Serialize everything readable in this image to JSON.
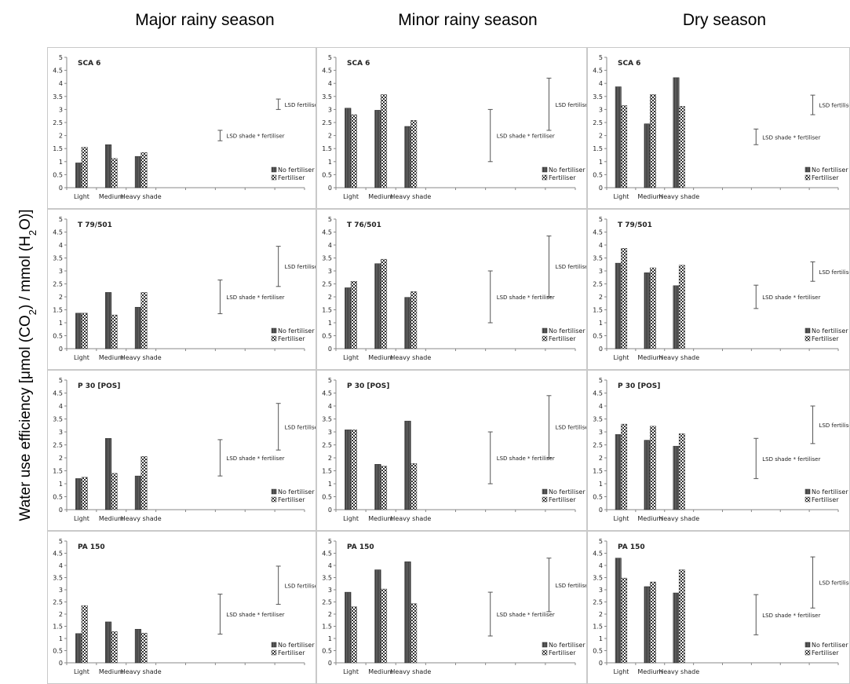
{
  "headers": [
    "Major rainy season",
    "Minor rainy season",
    "Dry season"
  ],
  "y_axis_label": {
    "pre": "Water use efficiency [μmol (CO",
    "sub1": "2",
    "mid": ") / mmol (H",
    "sub2": "2",
    "post": "O)]"
  },
  "colors": {
    "no_fertiliser": "#3a3a3a",
    "fertiliser_pattern": "checkered",
    "border": "#c9c9c9"
  },
  "chart_data": [
    {
      "type": "bar",
      "title": "SCA 6",
      "column": "Major rainy season",
      "categories": [
        "Light",
        "Medium",
        "Heavy shade"
      ],
      "ylim": [
        0,
        5
      ],
      "yticks": [
        "0",
        "0.5",
        "1",
        "1.5",
        "2",
        "2.5",
        "3",
        "3.5",
        "4",
        "4.5",
        "5"
      ],
      "series": [
        {
          "name": "No fertiliser",
          "values": [
            0.95,
            1.65,
            1.2
          ]
        },
        {
          "name": "Fertiliser",
          "values": [
            1.55,
            1.12,
            1.35
          ]
        }
      ],
      "lsd_fertiliser": {
        "label": "LSD fertiliser",
        "range": [
          3.0,
          3.4
        ]
      },
      "lsd_shade_fertiliser": {
        "label": "LSD shade * fertiliser",
        "range": [
          1.8,
          2.2
        ]
      }
    },
    {
      "type": "bar",
      "title": "SCA 6",
      "column": "Minor rainy season",
      "categories": [
        "Light",
        "Medium",
        "Heavy shade"
      ],
      "ylim": [
        0,
        5
      ],
      "yticks": [
        "0",
        "0.5",
        "1",
        "1.5",
        "2",
        "2.5",
        "3",
        "3.5",
        "4",
        "4.5",
        "5"
      ],
      "series": [
        {
          "name": "No fertiliser",
          "values": [
            3.05,
            2.97,
            2.35
          ]
        },
        {
          "name": "Fertiliser",
          "values": [
            2.8,
            3.57,
            2.58
          ]
        }
      ],
      "lsd_fertiliser": {
        "label": "LSD fertiliser",
        "range": [
          2.2,
          4.2
        ]
      },
      "lsd_shade_fertiliser": {
        "label": "LSD shade * fertiliser",
        "range": [
          1.0,
          3.0
        ]
      }
    },
    {
      "type": "bar",
      "title": "SCA 6",
      "column": "Dry season",
      "categories": [
        "Light",
        "Medium",
        "Heavy shade"
      ],
      "ylim": [
        0,
        5
      ],
      "yticks": [
        "0",
        "0.5",
        "1",
        "1.5",
        "2",
        "2.5",
        "3",
        "3.5",
        "4",
        "4.5",
        "5"
      ],
      "series": [
        {
          "name": "No fertiliser",
          "values": [
            3.87,
            2.45,
            4.22
          ]
        },
        {
          "name": "Fertiliser",
          "values": [
            3.15,
            3.57,
            3.12
          ]
        }
      ],
      "lsd_fertiliser": {
        "label": "LSD fertiliser",
        "range": [
          2.8,
          3.55
        ]
      },
      "lsd_shade_fertiliser": {
        "label": "LSD shade * fertiliser",
        "range": [
          1.65,
          2.25
        ]
      }
    },
    {
      "type": "bar",
      "title": "T 79/501",
      "column": "Major rainy season",
      "categories": [
        "Light",
        "Medium",
        "Heavy shade"
      ],
      "ylim": [
        0,
        5
      ],
      "yticks": [
        "0",
        "0.5",
        "1",
        "1.5",
        "2",
        "2.5",
        "3",
        "3.5",
        "4",
        "4.5",
        "5"
      ],
      "series": [
        {
          "name": "No fertiliser",
          "values": [
            1.37,
            2.17,
            1.6
          ]
        },
        {
          "name": "Fertiliser",
          "values": [
            1.37,
            1.3,
            2.17
          ]
        }
      ],
      "lsd_fertiliser": {
        "label": "LSD fertiliser",
        "range": [
          2.4,
          3.95
        ]
      },
      "lsd_shade_fertiliser": {
        "label": "LSD shade * fertiliser",
        "range": [
          1.35,
          2.65
        ]
      }
    },
    {
      "type": "bar",
      "title": "T 76/501",
      "column": "Minor rainy season",
      "categories": [
        "Light",
        "Medium",
        "Heavy shade"
      ],
      "ylim": [
        0,
        5
      ],
      "yticks": [
        "0",
        "0.5",
        "1",
        "1.5",
        "2",
        "2.5",
        "3",
        "3.5",
        "4",
        "4.5",
        "5"
      ],
      "series": [
        {
          "name": "No fertiliser",
          "values": [
            2.35,
            3.28,
            1.98
          ]
        },
        {
          "name": "Fertiliser",
          "values": [
            2.6,
            3.45,
            2.2
          ]
        }
      ],
      "lsd_fertiliser": {
        "label": "LSD fertiliser",
        "range": [
          2.0,
          4.35
        ]
      },
      "lsd_shade_fertiliser": {
        "label": "LSD shade * fertiliser",
        "range": [
          1.0,
          3.0
        ]
      }
    },
    {
      "type": "bar",
      "title": "T 79/501",
      "column": "Dry season",
      "categories": [
        "Light",
        "Medium",
        "Heavy shade"
      ],
      "ylim": [
        0,
        5
      ],
      "yticks": [
        "0",
        "0.5",
        "1",
        "1.5",
        "2",
        "2.5",
        "3",
        "3.5",
        "4",
        "4.5",
        "5"
      ],
      "series": [
        {
          "name": "No fertiliser",
          "values": [
            3.3,
            2.93,
            2.43
          ]
        },
        {
          "name": "Fertiliser",
          "values": [
            3.87,
            3.12,
            3.22
          ]
        }
      ],
      "lsd_fertiliser": {
        "label": "LSD fertiliser",
        "range": [
          2.6,
          3.35
        ]
      },
      "lsd_shade_fertiliser": {
        "label": "LSD shade * fertiliser",
        "range": [
          1.55,
          2.45
        ]
      }
    },
    {
      "type": "bar",
      "title": "P 30 [POS]",
      "column": "Major rainy season",
      "categories": [
        "Light",
        "Medium",
        "Heavy shade"
      ],
      "ylim": [
        0,
        5
      ],
      "yticks": [
        "0",
        "0.5",
        "1",
        "1.5",
        "2",
        "2.5",
        "3",
        "3.5",
        "4",
        "4.5",
        "5"
      ],
      "series": [
        {
          "name": "No fertiliser",
          "values": [
            1.2,
            2.75,
            1.3
          ]
        },
        {
          "name": "Fertiliser",
          "values": [
            1.25,
            1.4,
            2.05
          ]
        }
      ],
      "lsd_fertiliser": {
        "label": "LSD fertiliser",
        "range": [
          2.3,
          4.1
        ]
      },
      "lsd_shade_fertiliser": {
        "label": "LSD shade * fertiliser",
        "range": [
          1.3,
          2.7
        ]
      }
    },
    {
      "type": "bar",
      "title": "P 30 [POS]",
      "column": "Minor rainy season",
      "categories": [
        "Light",
        "Medium",
        "Heavy shade"
      ],
      "ylim": [
        0,
        5
      ],
      "yticks": [
        "0",
        "0.5",
        "1",
        "1.5",
        "2",
        "2.5",
        "3",
        "3.5",
        "4",
        "4.5",
        "5"
      ],
      "series": [
        {
          "name": "No fertiliser",
          "values": [
            3.08,
            1.75,
            3.42
          ]
        },
        {
          "name": "Fertiliser",
          "values": [
            3.08,
            1.68,
            1.78
          ]
        }
      ],
      "lsd_fertiliser": {
        "label": "LSD fertiliser",
        "range": [
          2.0,
          4.4
        ]
      },
      "lsd_shade_fertiliser": {
        "label": "LSD shade * fertiliser",
        "range": [
          1.0,
          3.0
        ]
      }
    },
    {
      "type": "bar",
      "title": "P 30 [POS]",
      "column": "Dry season",
      "categories": [
        "Light",
        "Medium",
        "Heavy shade"
      ],
      "ylim": [
        0,
        5
      ],
      "yticks": [
        "0",
        "0.5",
        "1",
        "1.5",
        "2",
        "2.5",
        "3",
        "3.5",
        "4",
        "4.5",
        "5"
      ],
      "series": [
        {
          "name": "No fertiliser",
          "values": [
            2.9,
            2.68,
            2.45
          ]
        },
        {
          "name": "Fertiliser",
          "values": [
            3.3,
            3.22,
            2.93
          ]
        }
      ],
      "lsd_fertiliser": {
        "label": "LSD fertiliser",
        "range": [
          2.55,
          4.0
        ]
      },
      "lsd_shade_fertiliser": {
        "label": "LSD shade * fertiliser",
        "range": [
          1.2,
          2.75
        ]
      }
    },
    {
      "type": "bar",
      "title": "PA 150",
      "column": "Major rainy season",
      "categories": [
        "Light",
        "Medium",
        "Heavy shade"
      ],
      "ylim": [
        0,
        5
      ],
      "yticks": [
        "0",
        "0.5",
        "1",
        "1.5",
        "2",
        "2.5",
        "3",
        "3.5",
        "4",
        "4.5",
        "5"
      ],
      "series": [
        {
          "name": "No fertiliser",
          "values": [
            1.2,
            1.68,
            1.38
          ]
        },
        {
          "name": "Fertiliser",
          "values": [
            2.35,
            1.28,
            1.22
          ]
        }
      ],
      "lsd_fertiliser": {
        "label": "LSD fertiliser",
        "range": [
          2.4,
          3.97
        ]
      },
      "lsd_shade_fertiliser": {
        "label": "LSD shade * fertiliser",
        "range": [
          1.18,
          2.82
        ]
      }
    },
    {
      "type": "bar",
      "title": "PA 150",
      "column": "Minor rainy season",
      "categories": [
        "Light",
        "Medium",
        "Heavy shade"
      ],
      "ylim": [
        0,
        5
      ],
      "yticks": [
        "0",
        "0.5",
        "1",
        "1.5",
        "2",
        "2.5",
        "3",
        "3.5",
        "4",
        "4.5",
        "5"
      ],
      "series": [
        {
          "name": "No fertiliser",
          "values": [
            2.9,
            3.82,
            4.15
          ]
        },
        {
          "name": "Fertiliser",
          "values": [
            2.3,
            3.03,
            2.43
          ]
        }
      ],
      "lsd_fertiliser": {
        "label": "LSD fertiliser",
        "range": [
          2.1,
          4.3
        ]
      },
      "lsd_shade_fertiliser": {
        "label": "LSD shade * fertiliser",
        "range": [
          1.1,
          2.9
        ]
      }
    },
    {
      "type": "bar",
      "title": "PA 150",
      "column": "Dry season",
      "categories": [
        "Light",
        "Medium",
        "Heavy shade"
      ],
      "ylim": [
        0,
        5
      ],
      "yticks": [
        "0",
        "0.5",
        "1",
        "1.5",
        "2",
        "2.5",
        "3",
        "3.5",
        "4",
        "4.5",
        "5"
      ],
      "series": [
        {
          "name": "No fertiliser",
          "values": [
            4.3,
            3.13,
            2.87
          ]
        },
        {
          "name": "Fertiliser",
          "values": [
            3.48,
            3.32,
            3.82
          ]
        }
      ],
      "lsd_fertiliser": {
        "label": "LSD fertiliser",
        "range": [
          2.25,
          4.35
        ]
      },
      "lsd_shade_fertiliser": {
        "label": "LSD shade * fertiliser",
        "range": [
          1.15,
          2.8
        ]
      }
    }
  ]
}
